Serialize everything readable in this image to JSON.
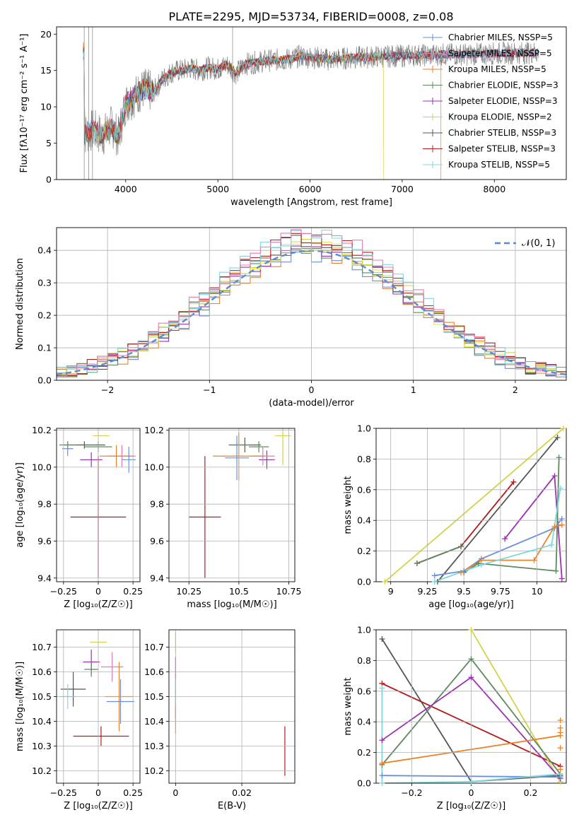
{
  "title": "PLATE=2295, MJD=53734, FIBERID=0008, z=0.08",
  "colors": [
    "#6a8fd8",
    "#e8832a",
    "#5c8a5c",
    "#9b30b0",
    "#e8e85a",
    "#d3d34a",
    "#555555",
    "#b01c1c",
    "#7fd8e0",
    "#e87ab0"
  ],
  "chart_data": [
    {
      "id": "spectrum",
      "type": "line",
      "xlabel": "wavelength [Angstrom, rest frame]",
      "ylabel": "Flux [fλ10⁻¹⁷ erg cm⁻² s⁻¹ A⁻¹]",
      "xlim": [
        3250,
        8780
      ],
      "ylim": [
        0,
        21
      ],
      "xticks": [
        4000,
        5000,
        6000,
        7000,
        8000
      ],
      "yticks": [
        0,
        5,
        10,
        15,
        20
      ],
      "legend_position": "top-right",
      "series": [
        {
          "name": "Chabrier MILES, NSSP=5",
          "color": "#6a8fd8"
        },
        {
          "name": "Salpeter MILES, NSSP=5",
          "color": "#e87ab0"
        },
        {
          "name": "Kroupa MILES, NSSP=5",
          "color": "#e8832a"
        },
        {
          "name": "Chabrier ELODIE, NSSP=3",
          "color": "#5c8a5c"
        },
        {
          "name": "Salpeter ELODIE, NSSP=3",
          "color": "#9b30b0"
        },
        {
          "name": "Kroupa ELODIE, NSSP=2",
          "color": "#d3d34a"
        },
        {
          "name": "Chabrier STELIB, NSSP=3",
          "color": "#555555"
        },
        {
          "name": "Salpeter STELIB, NSSP=3",
          "color": "#b01c1c"
        },
        {
          "name": "Kroupa STELIB, NSSP=5",
          "color": "#7fd8e0"
        }
      ],
      "continuum": [
        [
          3550,
          6.2
        ],
        [
          3650,
          6.8
        ],
        [
          3750,
          6.0
        ],
        [
          3850,
          7.4
        ],
        [
          3920,
          5.8
        ],
        [
          4000,
          10.5
        ],
        [
          4100,
          11.5
        ],
        [
          4200,
          12.5
        ],
        [
          4300,
          12.0
        ],
        [
          4400,
          13.8
        ],
        [
          4500,
          14.8
        ],
        [
          4600,
          15.0
        ],
        [
          4700,
          15.3
        ],
        [
          4800,
          15.0
        ],
        [
          4900,
          15.4
        ],
        [
          5000,
          15.2
        ],
        [
          5100,
          15.8
        ],
        [
          5200,
          14.6
        ],
        [
          5300,
          15.9
        ],
        [
          5400,
          16.1
        ],
        [
          5500,
          16.3
        ],
        [
          5600,
          16.4
        ],
        [
          5700,
          16.5
        ],
        [
          5800,
          16.6
        ],
        [
          5900,
          17.0
        ],
        [
          6000,
          16.8
        ],
        [
          6100,
          16.7
        ],
        [
          6200,
          16.5
        ],
        [
          6300,
          16.6
        ],
        [
          6400,
          16.7
        ],
        [
          6500,
          16.8
        ],
        [
          6600,
          16.8
        ],
        [
          6700,
          16.9
        ],
        [
          6800,
          16.9
        ],
        [
          6900,
          17.0
        ],
        [
          7000,
          17.0
        ],
        [
          7100,
          17.1
        ],
        [
          7200,
          17.1
        ],
        [
          7300,
          17.1
        ],
        [
          7400,
          17.2
        ],
        [
          7500,
          17.2
        ],
        [
          7700,
          17.2
        ],
        [
          7900,
          17.3
        ],
        [
          8100,
          17.4
        ],
        [
          8300,
          17.4
        ],
        [
          8500,
          17.5
        ]
      ]
    },
    {
      "id": "residuals",
      "type": "step",
      "xlabel": "(data-model)/error",
      "ylabel": "Normed distribution",
      "xlim": [
        -2.5,
        2.5
      ],
      "ylim": [
        0,
        0.47
      ],
      "xticks": [
        -2,
        -1,
        0,
        1,
        2
      ],
      "yticks": [
        0.0,
        0.1,
        0.2,
        0.3,
        0.4
      ],
      "legend": "𝒩(0, 1)",
      "legend_position": "top-right",
      "gaussian": {
        "mean": 0,
        "sigma": 1,
        "color": "#5b8bd6"
      },
      "bin_edges": [
        -2.5,
        2.5,
        50
      ]
    },
    {
      "id": "age-vs-Z",
      "type": "errorbar",
      "xlabel": "Z [log₁₀(Z/Z☉)]",
      "ylabel": "age  [log₁₀(age/yr)]",
      "xlim": [
        -0.3,
        0.3
      ],
      "ylim": [
        9.38,
        10.21
      ],
      "xticks": [
        -0.25,
        0.0,
        0.25
      ],
      "yticks": [
        9.4,
        9.6,
        9.8,
        10.0,
        10.2
      ],
      "points": [
        {
          "x": 0.02,
          "xerr": 0.06,
          "y": 10.17,
          "yerr": 0.0,
          "color": "#d3d34a"
        },
        {
          "x": -0.1,
          "xerr": 0.15,
          "y": 10.12,
          "yerr": 0.02,
          "color": "#555555"
        },
        {
          "x": -0.22,
          "xerr": 0.06,
          "y": 10.12,
          "yerr": 0.02,
          "color": "#5c8a5c"
        },
        {
          "x": -0.22,
          "xerr": 0.04,
          "y": 10.1,
          "yerr": 0.04,
          "color": "#6a8fd8"
        },
        {
          "x": 0.0,
          "xerr": 0.1,
          "y": 10.11,
          "yerr": 0.03,
          "color": "#5c8a5c"
        },
        {
          "x": -0.05,
          "xerr": 0.08,
          "y": 10.04,
          "yerr": 0.04,
          "color": "#9b30b0"
        },
        {
          "x": 0.17,
          "xerr": 0.1,
          "y": 10.06,
          "yerr": 0.06,
          "color": "#e87ab0"
        },
        {
          "x": 0.13,
          "xerr": 0.12,
          "y": 10.06,
          "yerr": 0.06,
          "color": "#e8832a"
        },
        {
          "x": 0.22,
          "xerr": 0.05,
          "y": 10.04,
          "yerr": 0.07,
          "color": "#6a8fd8"
        },
        {
          "x": 0.0,
          "xerr": 0.2,
          "y": 9.73,
          "yerr": 0.33,
          "color": "#b01c1c"
        }
      ]
    },
    {
      "id": "age-vs-mass",
      "type": "errorbar",
      "xlabel": "mass [log₁₀(M/M☉)]",
      "ylabel": "",
      "xlim": [
        10.15,
        10.78
      ],
      "ylim": [
        9.38,
        10.21
      ],
      "xticks": [
        10.25,
        10.5,
        10.75
      ],
      "yticks": [
        9.4,
        9.6,
        9.8,
        10.0,
        10.2
      ],
      "points": [
        {
          "x": 10.72,
          "xerr": 0.04,
          "y": 10.17,
          "yerr": 0.16,
          "color": "#d3d34a"
        },
        {
          "x": 10.53,
          "xerr": 0.08,
          "y": 10.12,
          "yerr": 0.04,
          "color": "#555555"
        },
        {
          "x": 10.5,
          "xerr": 0.05,
          "y": 10.12,
          "yerr": 0.06,
          "color": "#5c8a5c"
        },
        {
          "x": 10.6,
          "xerr": 0.05,
          "y": 10.11,
          "yerr": 0.03,
          "color": "#5c8a5c"
        },
        {
          "x": 10.64,
          "xerr": 0.04,
          "y": 10.04,
          "yerr": 0.05,
          "color": "#9b30b0"
        },
        {
          "x": 10.62,
          "xerr": 0.06,
          "y": 10.06,
          "yerr": 0.05,
          "color": "#e87ab0"
        },
        {
          "x": 10.5,
          "xerr": 0.13,
          "y": 10.06,
          "yerr": 0.13,
          "color": "#e8832a"
        },
        {
          "x": 10.49,
          "xerr": 0.06,
          "y": 10.05,
          "yerr": 0.12,
          "color": "#6a8fd8"
        },
        {
          "x": 10.33,
          "xerr": 0.08,
          "y": 9.73,
          "yerr": 0.33,
          "color": "#b01c1c"
        }
      ]
    },
    {
      "id": "weight-vs-age",
      "type": "line",
      "xlabel": "age  [log₁₀(age/yr)]",
      "ylabel": "mass weight",
      "xlim": [
        8.9,
        10.2
      ],
      "ylim": [
        0,
        1.0
      ],
      "xticks": [
        9.0,
        9.25,
        9.5,
        9.75,
        10.0
      ],
      "yticks": [
        0.0,
        0.2,
        0.4,
        0.6,
        0.8,
        1.0
      ],
      "series": [
        {
          "color": "#d3d34a",
          "points": [
            [
              8.96,
              0.0
            ],
            [
              10.18,
              1.0
            ]
          ]
        },
        {
          "color": "#555555",
          "points": [
            [
              9.32,
              0.0
            ],
            [
              10.14,
              0.94
            ]
          ]
        },
        {
          "color": "#b01c1c",
          "points": [
            [
              9.18,
              0.12
            ],
            [
              9.48,
              0.23
            ],
            [
              9.84,
              0.65
            ]
          ]
        },
        {
          "color": "#9b30b0",
          "points": [
            [
              9.78,
              0.28
            ],
            [
              10.12,
              0.69
            ],
            [
              10.17,
              0.02
            ]
          ]
        },
        {
          "color": "#5c8a5c",
          "points": [
            [
              9.18,
              0.12
            ],
            [
              9.48,
              0.23
            ]
          ]
        },
        {
          "color": "#5c8a5c",
          "points": [
            [
              9.5,
              0.06
            ],
            [
              9.6,
              0.12
            ],
            [
              10.13,
              0.07
            ],
            [
              10.15,
              0.81
            ]
          ]
        },
        {
          "color": "#6a8fd8",
          "points": [
            [
              9.3,
              0.04
            ],
            [
              9.5,
              0.07
            ],
            [
              9.62,
              0.15
            ],
            [
              10.12,
              0.35
            ],
            [
              10.17,
              0.41
            ]
          ]
        },
        {
          "color": "#e8832a",
          "points": [
            [
              9.48,
              0.06
            ],
            [
              9.62,
              0.14
            ],
            [
              9.98,
              0.14
            ],
            [
              10.12,
              0.36
            ],
            [
              10.17,
              0.37
            ]
          ]
        },
        {
          "color": "#7fd8e0",
          "points": [
            [
              9.3,
              0.0
            ],
            [
              9.62,
              0.11
            ],
            [
              10.1,
              0.24
            ],
            [
              10.16,
              0.61
            ]
          ]
        }
      ]
    },
    {
      "id": "mass-vs-Z",
      "type": "errorbar",
      "xlabel": "Z [log₁₀(Z/Z☉)]",
      "ylabel": "mass [log₁₀(M/M☉)]",
      "xlim": [
        -0.3,
        0.3
      ],
      "ylim": [
        10.15,
        10.77
      ],
      "xticks": [
        -0.25,
        0.0,
        0.25
      ],
      "yticks": [
        10.2,
        10.3,
        10.4,
        10.5,
        10.6,
        10.7
      ],
      "points": [
        {
          "x": 0.0,
          "xerr": 0.06,
          "y": 10.72,
          "yerr": 0.0,
          "color": "#d3d34a"
        },
        {
          "x": -0.05,
          "xerr": 0.06,
          "y": 10.64,
          "yerr": 0.05,
          "color": "#9b30b0"
        },
        {
          "x": -0.05,
          "xerr": 0.05,
          "y": 10.61,
          "yerr": 0.03,
          "color": "#5c8a5c"
        },
        {
          "x": 0.1,
          "xerr": 0.08,
          "y": 10.62,
          "yerr": 0.06,
          "color": "#e87ab0"
        },
        {
          "x": -0.18,
          "xerr": 0.09,
          "y": 10.53,
          "yerr": 0.07,
          "color": "#555555"
        },
        {
          "x": -0.22,
          "xerr": 0.06,
          "y": 10.5,
          "yerr": 0.05,
          "color": "#7fd8e0"
        },
        {
          "x": 0.15,
          "xerr": 0.1,
          "y": 10.5,
          "yerr": 0.14,
          "color": "#e8832a"
        },
        {
          "x": 0.16,
          "xerr": 0.1,
          "y": 10.48,
          "yerr": 0.09,
          "color": "#6a8fd8"
        },
        {
          "x": 0.02,
          "xerr": 0.2,
          "y": 10.34,
          "yerr": 0.04,
          "color": "#b01c1c"
        }
      ]
    },
    {
      "id": "mass-vs-EBV",
      "type": "errorbar",
      "xlabel": "E(B-V)",
      "ylabel": "",
      "xlim": [
        -0.002,
        0.036
      ],
      "ylim": [
        10.15,
        10.77
      ],
      "xticks": [
        0.0,
        0.02
      ],
      "yticks": [
        10.2,
        10.3,
        10.4,
        10.5,
        10.6,
        10.7
      ],
      "points": [
        {
          "x": 0.0,
          "xerr": 0.0,
          "y": 10.72,
          "yerr": 0.04,
          "color": "#d3d34a"
        },
        {
          "x": 0.0,
          "xerr": 0.0,
          "y": 10.6,
          "yerr": 0.06,
          "color": "#9b30b0"
        },
        {
          "x": 0.0,
          "xerr": 0.0,
          "y": 10.48,
          "yerr": 0.07,
          "color": "#6a8fd8"
        },
        {
          "x": 0.0,
          "xerr": 0.0,
          "y": 10.44,
          "yerr": 0.09,
          "color": "#e8832a"
        },
        {
          "x": 0.0,
          "xerr": 0.0,
          "y": 10.52,
          "yerr": 0.05,
          "color": "#7fd8e0"
        },
        {
          "x": 0.033,
          "xerr": 0.0,
          "y": 10.28,
          "yerr": 0.1,
          "color": "#b01c1c"
        }
      ]
    },
    {
      "id": "weight-vs-Z",
      "type": "line",
      "xlabel": "Z [log₁₀(Z/Z☉)]",
      "ylabel": "mass weight",
      "xlim": [
        -0.32,
        0.32
      ],
      "ylim": [
        0,
        1.0
      ],
      "xticks": [
        -0.2,
        0.0,
        0.2
      ],
      "yticks": [
        0.0,
        0.2,
        0.4,
        0.6,
        0.8,
        1.0
      ],
      "series": [
        {
          "color": "#555555",
          "points": [
            [
              -0.3,
              0.94
            ],
            [
              0.0,
              0.01
            ],
            [
              0.3,
              0.05
            ]
          ]
        },
        {
          "color": "#b01c1c",
          "points": [
            [
              -0.3,
              0.65
            ],
            [
              0.3,
              0.11
            ]
          ]
        },
        {
          "color": "#d3d34a",
          "points": [
            [
              0.0,
              1.0
            ],
            [
              0.3,
              0.01
            ]
          ]
        },
        {
          "color": "#5c8a5c",
          "points": [
            [
              -0.3,
              0.12
            ],
            [
              0.0,
              0.81
            ],
            [
              0.3,
              0.06
            ]
          ]
        },
        {
          "color": "#9b30b0",
          "points": [
            [
              -0.3,
              0.28
            ],
            [
              0.0,
              0.69
            ],
            [
              0.3,
              0.03
            ]
          ]
        },
        {
          "color": "#e8832a",
          "points": [
            [
              -0.3,
              0.13
            ],
            [
              0.3,
              0.31
            ]
          ]
        },
        {
          "color": "#6a8fd8",
          "points": [
            [
              -0.3,
              0.05
            ],
            [
              0.3,
              0.04
            ]
          ]
        },
        {
          "color": "#7fd8e0",
          "points": [
            [
              -0.3,
              0.62
            ],
            [
              -0.3,
              0.0
            ],
            [
              0.0,
              0.01
            ],
            [
              0.3,
              0.06
            ]
          ]
        }
      ],
      "markers_right": [
        [
          0.3,
          0.41
        ],
        [
          0.3,
          0.36
        ],
        [
          0.3,
          0.33
        ],
        [
          0.3,
          0.23
        ],
        [
          0.3,
          0.09
        ]
      ]
    }
  ]
}
